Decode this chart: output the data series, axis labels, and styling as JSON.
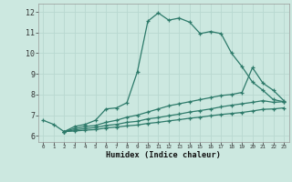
{
  "xlabel": "Humidex (Indice chaleur)",
  "xlim": [
    -0.5,
    23.5
  ],
  "ylim": [
    5.7,
    12.4
  ],
  "xticks": [
    0,
    1,
    2,
    3,
    4,
    5,
    6,
    7,
    8,
    9,
    10,
    11,
    12,
    13,
    14,
    15,
    16,
    17,
    18,
    19,
    20,
    21,
    22,
    23
  ],
  "yticks": [
    6,
    7,
    8,
    9,
    10,
    11,
    12
  ],
  "bg_color": "#cce8e0",
  "grid_color": "#b8d8d0",
  "line_color": "#2d7a6a",
  "line1_x": [
    0,
    1,
    2,
    3,
    4,
    5,
    6,
    7,
    8,
    9,
    10,
    11,
    12,
    13,
    14,
    15,
    16,
    17,
    18,
    19,
    20,
    21,
    22,
    23
  ],
  "line1_y": [
    6.75,
    6.55,
    6.2,
    6.45,
    6.55,
    6.75,
    7.3,
    7.35,
    7.6,
    9.1,
    11.55,
    11.95,
    11.6,
    11.7,
    11.5,
    10.95,
    11.05,
    10.95,
    10.0,
    9.35,
    8.6,
    8.2,
    7.75,
    7.65
  ],
  "line2_x": [
    2,
    3,
    4,
    5,
    6,
    7,
    8,
    9,
    10,
    11,
    12,
    13,
    14,
    15,
    16,
    17,
    18,
    19,
    20,
    21,
    22,
    23
  ],
  "line2_y": [
    6.2,
    6.35,
    6.45,
    6.5,
    6.65,
    6.75,
    6.9,
    7.0,
    7.15,
    7.3,
    7.45,
    7.55,
    7.65,
    7.75,
    7.85,
    7.95,
    8.0,
    8.1,
    9.3,
    8.55,
    8.2,
    7.7
  ],
  "line3_x": [
    2,
    3,
    4,
    5,
    6,
    7,
    8,
    9,
    10,
    11,
    12,
    13,
    14,
    15,
    16,
    17,
    18,
    19,
    20,
    21,
    22,
    23
  ],
  "line3_y": [
    6.2,
    6.28,
    6.35,
    6.4,
    6.5,
    6.55,
    6.65,
    6.7,
    6.82,
    6.88,
    6.97,
    7.05,
    7.15,
    7.22,
    7.3,
    7.4,
    7.48,
    7.55,
    7.62,
    7.7,
    7.62,
    7.65
  ],
  "line4_x": [
    2,
    3,
    4,
    5,
    6,
    7,
    8,
    9,
    10,
    11,
    12,
    13,
    14,
    15,
    16,
    17,
    18,
    19,
    20,
    21,
    22,
    23
  ],
  "line4_y": [
    6.2,
    6.23,
    6.27,
    6.3,
    6.38,
    6.42,
    6.48,
    6.52,
    6.6,
    6.65,
    6.72,
    6.78,
    6.85,
    6.9,
    6.97,
    7.03,
    7.08,
    7.13,
    7.2,
    7.28,
    7.3,
    7.35
  ]
}
